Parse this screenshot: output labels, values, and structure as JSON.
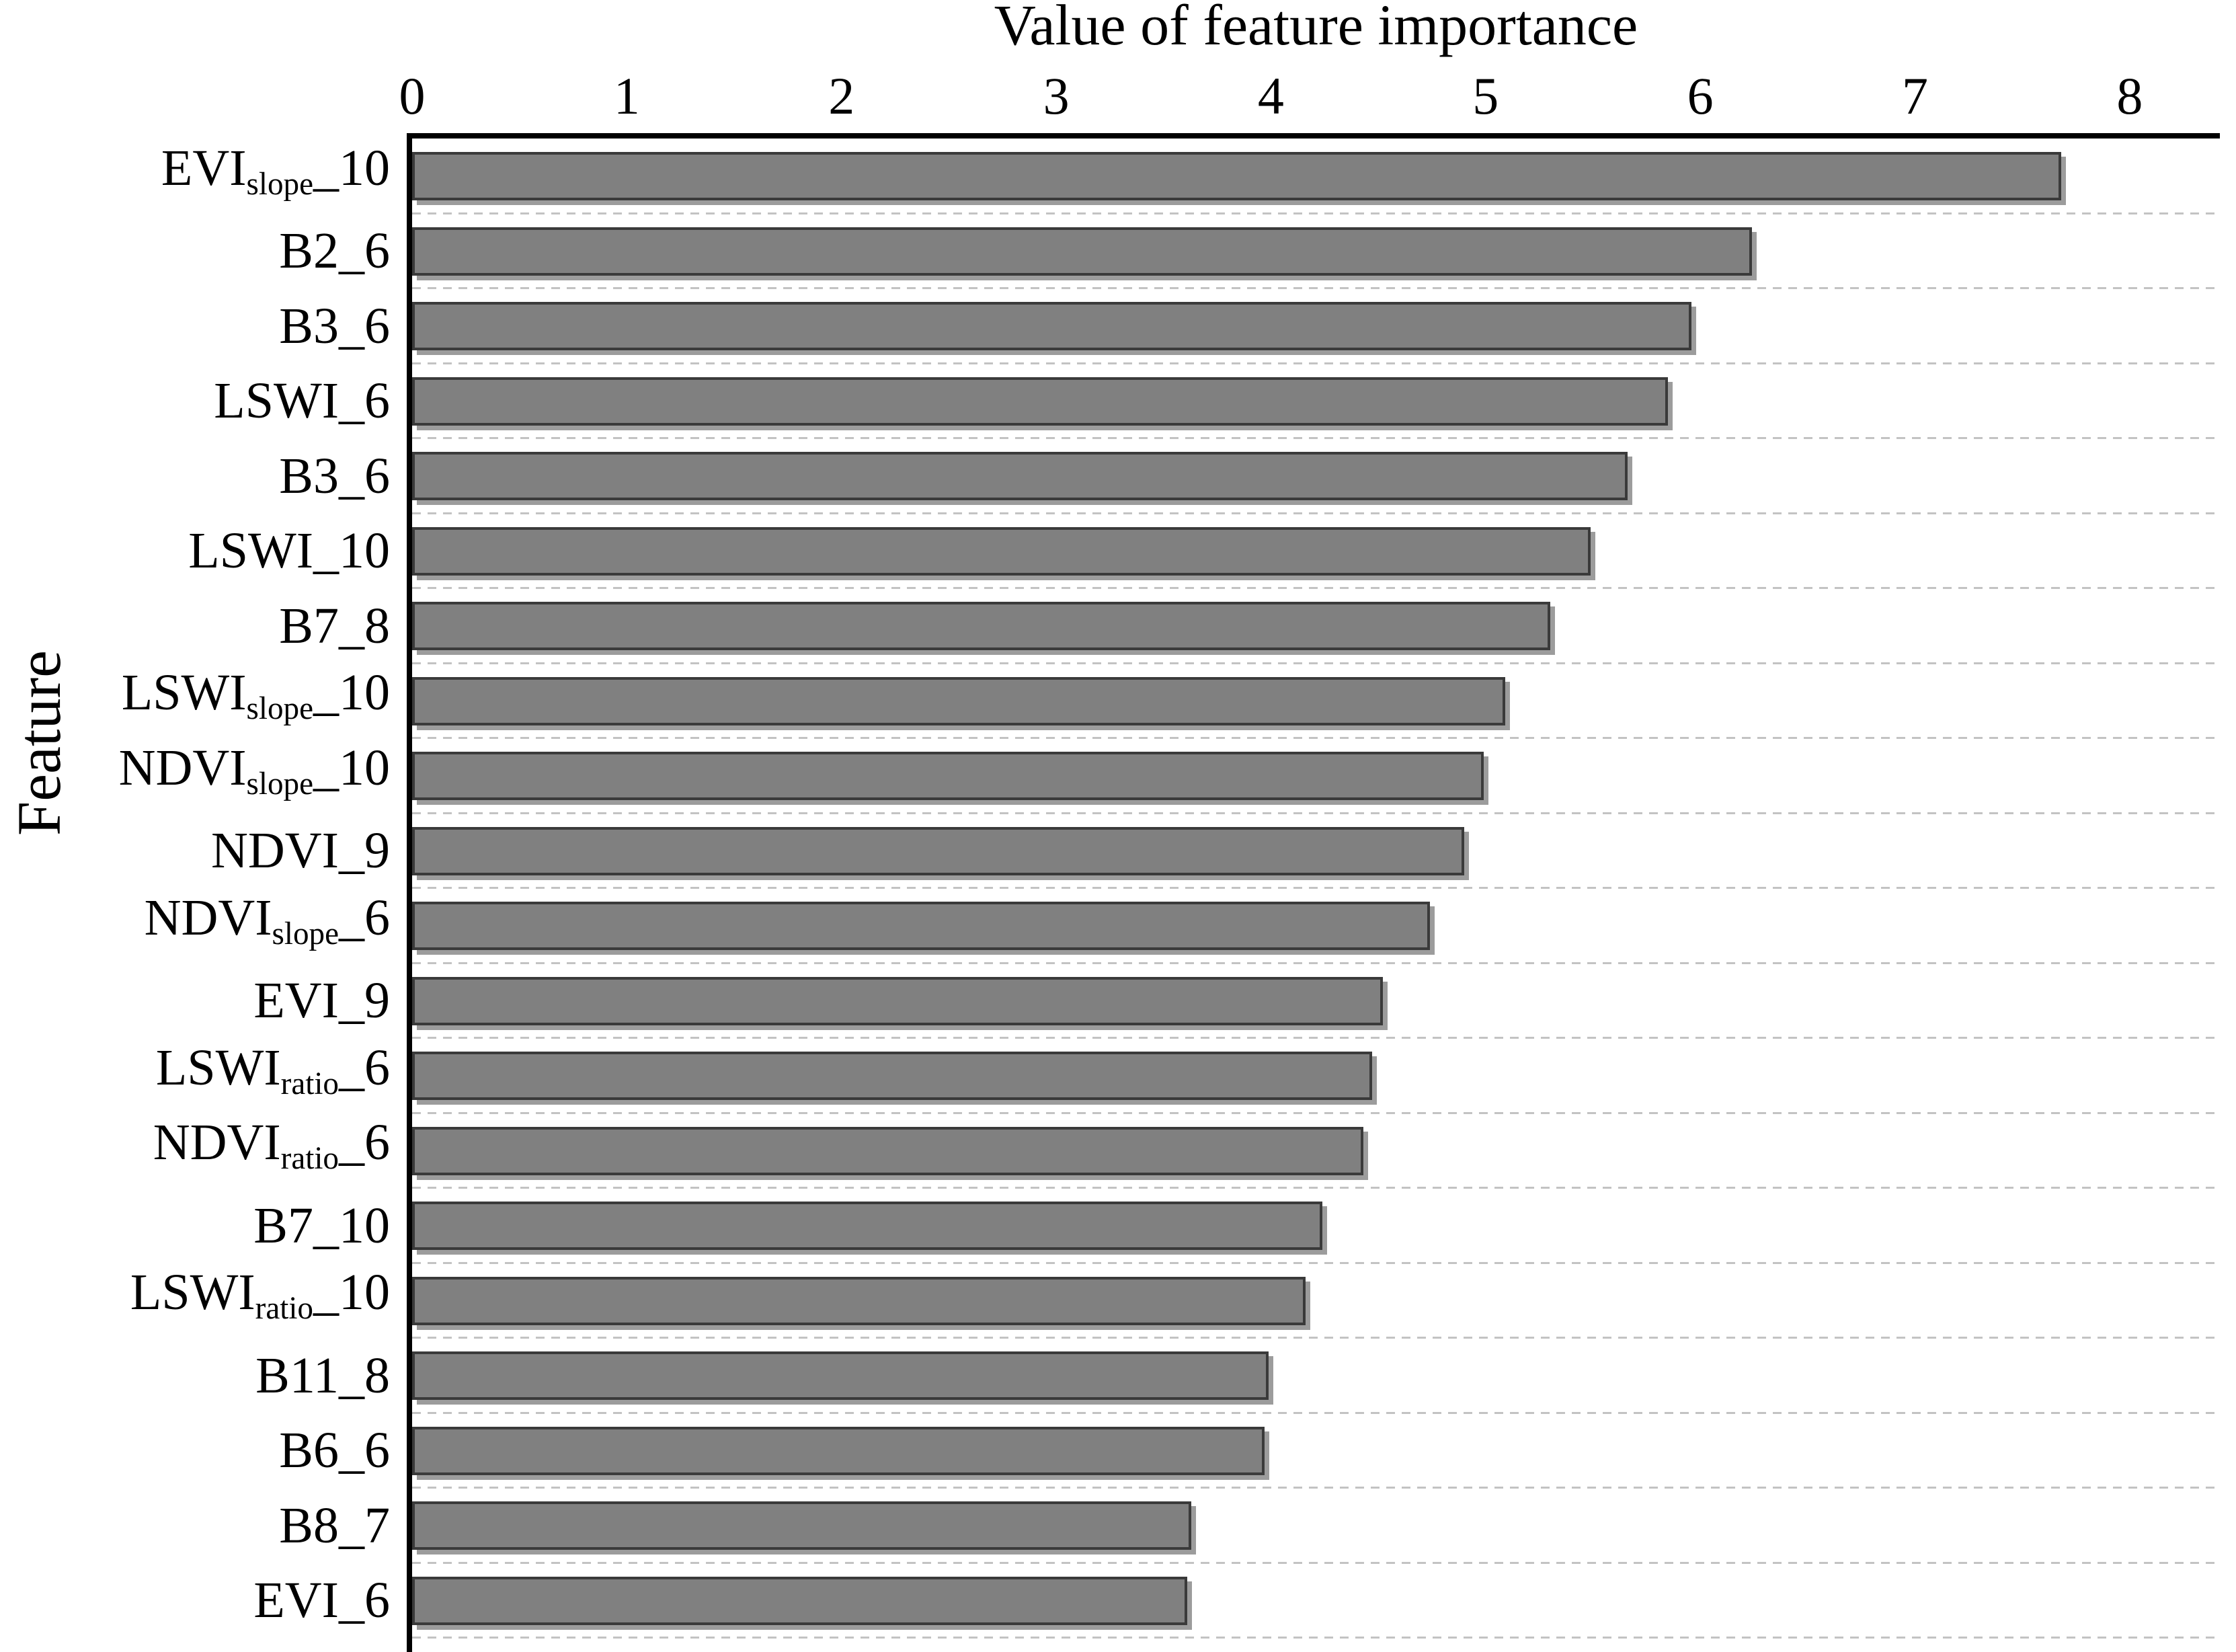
{
  "chart_data": {
    "type": "bar",
    "orientation": "horizontal",
    "title": "Value of feature importance",
    "xlabel": "Value of feature importance",
    "ylabel": "Feature",
    "xlim": [
      0,
      8.42
    ],
    "xticks": [
      "0",
      "1",
      "2",
      "3",
      "4",
      "5",
      "6",
      "7",
      "8"
    ],
    "grid": "horizontal dashed lines between bars",
    "legend": "none",
    "colors": {
      "bar_fill": "#808080",
      "bar_edge": "#3a3a3a",
      "bar_shadow": "#9c9c9c",
      "gridline": "#c3c3c3",
      "spine": "#000000",
      "background": "#ffffff"
    },
    "categories": [
      "EVI_slope_10",
      "B2_6",
      "B3_6",
      "LSWI_6",
      "B3_6",
      "LSWI_10",
      "B7_8",
      "LSWI_slope_10",
      "NDVI_slope_10",
      "NDVI_9",
      "NDVI_slope_6",
      "EVI_9",
      "LSWI_ratio_6",
      "NDVI_ratio_6",
      "B7_10",
      "LSWI_ratio_10",
      "B11_8",
      "B6_6",
      "B8_7",
      "EVI_6"
    ],
    "labels_rich": [
      {
        "pre": "EVI",
        "sub": "slope",
        "post": "_10"
      },
      {
        "pre": "B2_6",
        "sub": "",
        "post": ""
      },
      {
        "pre": "B3_6",
        "sub": "",
        "post": ""
      },
      {
        "pre": "LSWI_6",
        "sub": "",
        "post": ""
      },
      {
        "pre": "B3_6",
        "sub": "",
        "post": ""
      },
      {
        "pre": "LSWI_10",
        "sub": "",
        "post": ""
      },
      {
        "pre": "B7_8",
        "sub": "",
        "post": ""
      },
      {
        "pre": "LSWI",
        "sub": "slope",
        "post": "_10"
      },
      {
        "pre": "NDVI",
        "sub": "slope",
        "post": "_10"
      },
      {
        "pre": "NDVI_9",
        "sub": "",
        "post": ""
      },
      {
        "pre": "NDVI",
        "sub": "slope",
        "post": "_6"
      },
      {
        "pre": "EVI_9",
        "sub": "",
        "post": ""
      },
      {
        "pre": "LSWI",
        "sub": "ratio",
        "post": "_6"
      },
      {
        "pre": "NDVI",
        "sub": "ratio",
        "post": "_6"
      },
      {
        "pre": "B7_10",
        "sub": "",
        "post": ""
      },
      {
        "pre": "LSWI",
        "sub": "ratio",
        "post": "_10"
      },
      {
        "pre": "B11_8",
        "sub": "",
        "post": ""
      },
      {
        "pre": "B6_6",
        "sub": "",
        "post": ""
      },
      {
        "pre": "B8_7",
        "sub": "",
        "post": ""
      },
      {
        "pre": "EVI_6",
        "sub": "",
        "post": ""
      }
    ],
    "values": [
      7.68,
      6.24,
      5.96,
      5.85,
      5.66,
      5.49,
      5.3,
      5.09,
      4.99,
      4.9,
      4.74,
      4.52,
      4.47,
      4.43,
      4.24,
      4.16,
      3.99,
      3.97,
      3.63,
      3.61
    ]
  }
}
